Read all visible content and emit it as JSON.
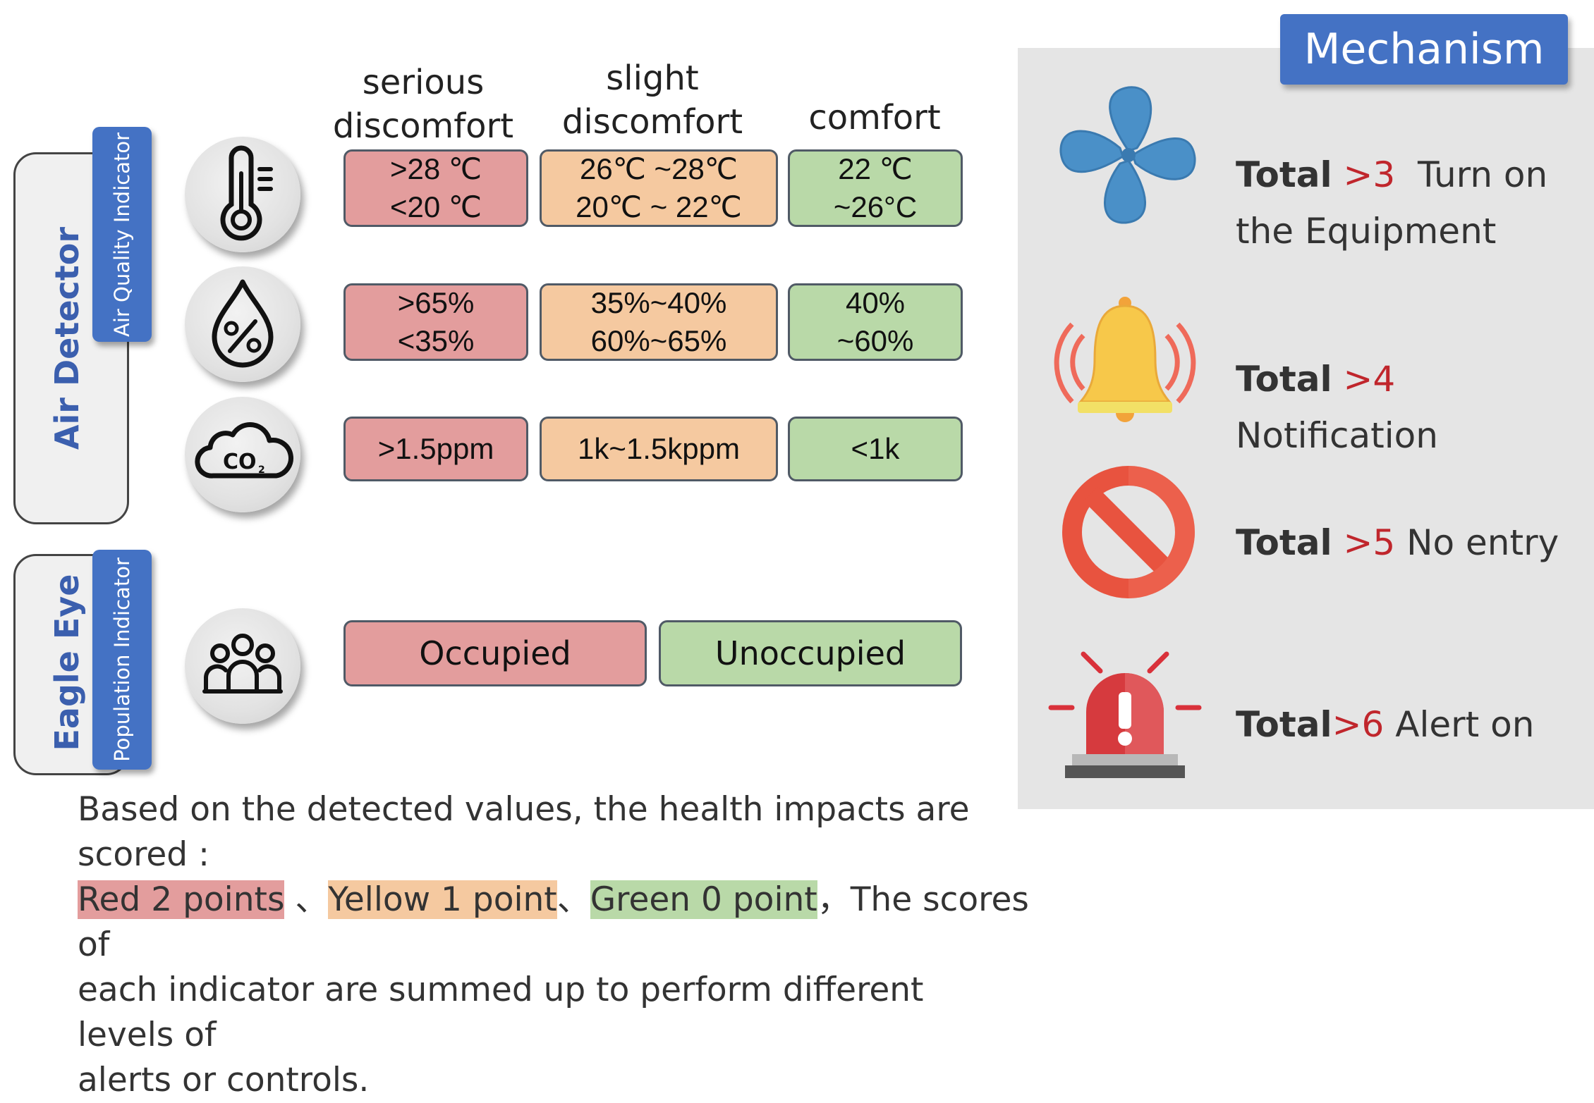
{
  "columns": {
    "serious": "serious\ndiscomfort",
    "slight": "slight\ndiscomfort",
    "comfort": "comfort"
  },
  "groups": {
    "air_detector": {
      "title": "Air Detector",
      "indicator": "Air Quality Indicator"
    },
    "eagle_eye": {
      "title": "Eagle Eye",
      "indicator": "Population Indicator"
    }
  },
  "icons": {
    "temperature": "thermometer-icon",
    "humidity": "humidity-drop-icon",
    "co2": "co2-cloud-icon",
    "population": "people-group-icon"
  },
  "temperature": {
    "serious_1": ">28 ℃",
    "serious_2": "<20 ℃",
    "slight_1": "26℃ ~28℃",
    "slight_2": "20℃ ~ 22℃",
    "comfort_1": "22 ℃",
    "comfort_2": "~26°C"
  },
  "humidity": {
    "serious_1": ">65%",
    "serious_2": "<35%",
    "slight_1": "35%~40%",
    "slight_2": "60%~65%",
    "comfort_1": "40%",
    "comfort_2": "~60%"
  },
  "co2": {
    "serious": ">1.5ppm",
    "slight": "1k~1.5kppm",
    "comfort": "<1k"
  },
  "population": {
    "occupied": "Occupied",
    "unoccupied": "Unoccupied"
  },
  "mechanism": {
    "title": "Mechanism",
    "rules": [
      {
        "total": "Total",
        "threshold": ">3",
        "action_1": "Turn on",
        "action_2": "the Equipment",
        "icon": "fan-icon"
      },
      {
        "total": "Total",
        "threshold": ">4",
        "action_1": "Notification",
        "icon": "bell-icon"
      },
      {
        "total": "Total",
        "threshold": ">5",
        "action_1": "No entry",
        "icon": "no-entry-icon"
      },
      {
        "total": "Total",
        "threshold": ">6",
        "action_1": "Alert  on",
        "icon": "siren-icon"
      }
    ]
  },
  "footer": {
    "line1": "Based on the detected values, the health impacts are scored :",
    "red": "Red 2 points",
    "sep1": " 、",
    "yellow": "Yellow 1 point",
    "sep2": "、",
    "green": "Green 0 point",
    "rest1": "，The scores of",
    "line3": "each indicator are summed up to perform different levels of",
    "line4": "alerts or controls."
  },
  "colors": {
    "red": "#e39d9d",
    "yellow": "#f5c9a0",
    "green": "#b9d9a8",
    "blue": "#4472c4",
    "threshold_red": "#c0262c",
    "panel_gray": "#e5e5e5"
  }
}
